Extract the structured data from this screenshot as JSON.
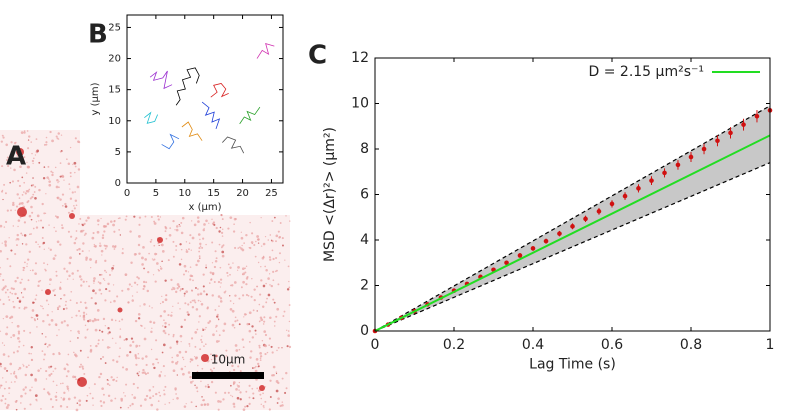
{
  "image": {
    "label": "A",
    "scale_bar": "10μm"
  },
  "chart_data": [
    {
      "type": "line",
      "label": "B",
      "xlabel": "x (μm)",
      "ylabel": "y (μm)",
      "xlim": [
        0,
        27
      ],
      "xticks": [
        0,
        5,
        10,
        15,
        20,
        25
      ],
      "ylim": [
        0,
        27
      ],
      "yticks": [
        0,
        5,
        10,
        15,
        20,
        25
      ],
      "series": [
        {
          "color": "#000000",
          "x": [
            8.5,
            9.2,
            8.7,
            10.1,
            9.6,
            11.0,
            10.4,
            11.8,
            12.5,
            12.0
          ],
          "values": [
            12.5,
            13.4,
            14.8,
            15.1,
            16.6,
            17.0,
            18.2,
            18.5,
            17.3,
            16.0
          ]
        },
        {
          "color": "#9b30d0",
          "x": [
            4.0,
            5.1,
            4.6,
            6.2,
            7.0,
            6.4,
            7.8
          ],
          "values": [
            17.0,
            17.8,
            16.5,
            16.9,
            18.0,
            15.2,
            15.8
          ]
        },
        {
          "color": "#1f3fd8",
          "x": [
            13.0,
            14.2,
            13.6,
            15.1,
            14.7,
            16.0,
            15.4
          ],
          "values": [
            13.0,
            12.1,
            10.9,
            11.4,
            9.8,
            10.3,
            8.7
          ]
        },
        {
          "color": "#2aa12a",
          "x": [
            19.5,
            20.3,
            21.4,
            20.8,
            22.1,
            23.0
          ],
          "values": [
            9.5,
            10.6,
            10.1,
            11.5,
            11.0,
            12.2
          ]
        },
        {
          "color": "#d82020",
          "x": [
            14.5,
            15.6,
            15.0,
            16.3,
            17.1,
            16.4,
            17.6
          ],
          "values": [
            13.8,
            14.6,
            15.7,
            16.0,
            15.1,
            13.9,
            14.4
          ]
        },
        {
          "color": "#20c0d0",
          "x": [
            3.0,
            4.1,
            3.5,
            4.8,
            5.3
          ],
          "values": [
            10.5,
            11.3,
            9.6,
            9.9,
            11.0
          ]
        },
        {
          "color": "#e08a10",
          "x": [
            9.5,
            10.6,
            11.3,
            10.8,
            12.2,
            13.0
          ],
          "values": [
            9.0,
            9.8,
            8.6,
            7.5,
            7.9,
            6.8
          ]
        },
        {
          "color": "#d030b0",
          "x": [
            22.5,
            23.4,
            24.5,
            24.0,
            25.5
          ],
          "values": [
            20.0,
            21.3,
            20.7,
            22.4,
            22.0
          ]
        },
        {
          "color": "#505050",
          "x": [
            16.5,
            17.4,
            18.8,
            18.1,
            19.6,
            20.2
          ],
          "values": [
            6.5,
            7.4,
            6.9,
            5.6,
            5.9,
            4.8
          ]
        },
        {
          "color": "#3070e0",
          "x": [
            6.0,
            7.3,
            8.1,
            7.5,
            9.0
          ],
          "values": [
            6.2,
            5.5,
            6.6,
            7.8,
            7.1
          ]
        }
      ]
    },
    {
      "type": "scatter",
      "label": "C",
      "xlabel": "Lag Time (s)",
      "ylabel": "MSD <(Δr)²> (μm²)",
      "xlim": [
        0,
        1
      ],
      "xticks": [
        0,
        0.2,
        0.4,
        0.6,
        0.8,
        1
      ],
      "ylim": [
        0,
        12
      ],
      "yticks": [
        0,
        2,
        4,
        6,
        8,
        10,
        12
      ],
      "band": {
        "x": [
          0,
          1
        ],
        "lower": [
          0,
          7.4
        ],
        "upper": [
          0,
          9.9
        ],
        "color": "#c8c8c8"
      },
      "series": [
        {
          "mode": "markers",
          "color": "#d01010",
          "x": [
            0,
            0.033,
            0.067,
            0.1,
            0.133,
            0.167,
            0.2,
            0.233,
            0.267,
            0.3,
            0.333,
            0.367,
            0.4,
            0.433,
            0.467,
            0.5,
            0.533,
            0.567,
            0.6,
            0.633,
            0.667,
            0.7,
            0.733,
            0.767,
            0.8,
            0.833,
            0.867,
            0.9,
            0.933,
            0.967,
            1
          ],
          "values": [
            0,
            0.28,
            0.58,
            0.87,
            1.17,
            1.47,
            1.77,
            2.07,
            2.38,
            2.69,
            3.0,
            3.32,
            3.63,
            3.95,
            4.28,
            4.6,
            4.93,
            5.26,
            5.59,
            5.93,
            6.27,
            6.61,
            6.95,
            7.3,
            7.65,
            8.0,
            8.36,
            8.71,
            9.07,
            9.44,
            9.7
          ],
          "errors": [
            0,
            0.02,
            0.03,
            0.03,
            0.04,
            0.05,
            0.05,
            0.06,
            0.07,
            0.08,
            0.09,
            0.1,
            0.1,
            0.11,
            0.12,
            0.13,
            0.14,
            0.15,
            0.16,
            0.17,
            0.18,
            0.19,
            0.2,
            0.21,
            0.22,
            0.23,
            0.24,
            0.25,
            0.26,
            0.27,
            0.28
          ]
        },
        {
          "mode": "line",
          "name": "D = 2.15 μm²s⁻¹",
          "color": "#22dd22",
          "x": [
            0,
            1
          ],
          "values": [
            0,
            8.6
          ]
        }
      ]
    }
  ]
}
